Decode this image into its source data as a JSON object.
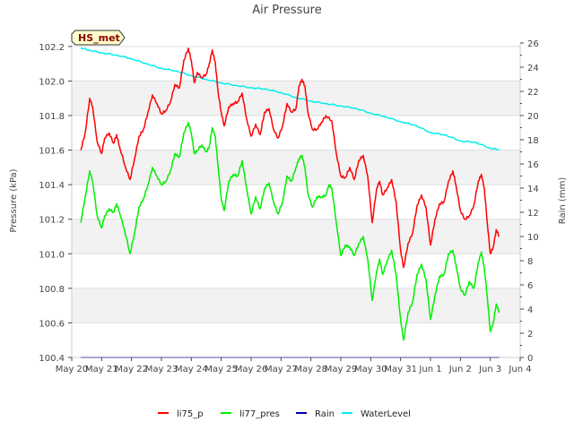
{
  "chart_data": {
    "type": "line",
    "title": "Air Pressure",
    "badge": "HS_met",
    "xlabel": "",
    "ylabel": "Pressure (kPa)",
    "y2label": "Rain (mm)",
    "x_ticks": [
      "May 20",
      "May 21",
      "May 22",
      "May 23",
      "May 24",
      "May 25",
      "May 26",
      "May 27",
      "May 28",
      "May 29",
      "May 30",
      "May 31",
      "Jun 1",
      "Jun 2",
      "Jun 3",
      "Jun 4"
    ],
    "xlim": [
      0,
      15
    ],
    "ylim": [
      100.4,
      102.22
    ],
    "y_ticks": [
      "100.4",
      "100.6",
      "100.8",
      "101.0",
      "101.2",
      "101.4",
      "101.6",
      "101.8",
      "102.0",
      "102.2"
    ],
    "y2lim": [
      0,
      26
    ],
    "y2_ticks": [
      "0",
      "2",
      "4",
      "6",
      "8",
      "10",
      "12",
      "14",
      "16",
      "18",
      "20",
      "22",
      "24",
      "26"
    ],
    "grid": true,
    "legend_position": "bottom-center",
    "series": [
      {
        "name": "li75_p",
        "color": "#ff0000",
        "axis": "left",
        "points": [
          [
            0.3,
            101.6
          ],
          [
            0.45,
            101.7
          ],
          [
            0.6,
            101.9
          ],
          [
            0.7,
            101.85
          ],
          [
            0.85,
            101.65
          ],
          [
            1.0,
            101.58
          ],
          [
            1.1,
            101.67
          ],
          [
            1.25,
            101.7
          ],
          [
            1.4,
            101.64
          ],
          [
            1.5,
            101.69
          ],
          [
            1.6,
            101.62
          ],
          [
            1.8,
            101.5
          ],
          [
            1.95,
            101.43
          ],
          [
            2.1,
            101.55
          ],
          [
            2.25,
            101.68
          ],
          [
            2.4,
            101.72
          ],
          [
            2.55,
            101.82
          ],
          [
            2.7,
            101.92
          ],
          [
            2.85,
            101.87
          ],
          [
            3.0,
            101.81
          ],
          [
            3.15,
            101.83
          ],
          [
            3.3,
            101.88
          ],
          [
            3.45,
            101.98
          ],
          [
            3.6,
            101.96
          ],
          [
            3.75,
            102.12
          ],
          [
            3.9,
            102.19
          ],
          [
            4.0,
            102.12
          ],
          [
            4.1,
            101.99
          ],
          [
            4.2,
            102.05
          ],
          [
            4.35,
            102.02
          ],
          [
            4.5,
            102.04
          ],
          [
            4.6,
            102.1
          ],
          [
            4.7,
            102.18
          ],
          [
            4.8,
            102.11
          ],
          [
            4.9,
            101.93
          ],
          [
            5.0,
            101.82
          ],
          [
            5.1,
            101.74
          ],
          [
            5.25,
            101.85
          ],
          [
            5.4,
            101.87
          ],
          [
            5.55,
            101.88
          ],
          [
            5.7,
            101.93
          ],
          [
            5.85,
            101.78
          ],
          [
            6.0,
            101.68
          ],
          [
            6.15,
            101.75
          ],
          [
            6.3,
            101.69
          ],
          [
            6.45,
            101.82
          ],
          [
            6.6,
            101.84
          ],
          [
            6.75,
            101.72
          ],
          [
            6.9,
            101.67
          ],
          [
            7.05,
            101.74
          ],
          [
            7.2,
            101.87
          ],
          [
            7.35,
            101.82
          ],
          [
            7.5,
            101.84
          ],
          [
            7.6,
            101.97
          ],
          [
            7.7,
            102.01
          ],
          [
            7.8,
            101.97
          ],
          [
            7.9,
            101.82
          ],
          [
            8.05,
            101.72
          ],
          [
            8.2,
            101.72
          ],
          [
            8.35,
            101.76
          ],
          [
            8.5,
            101.8
          ],
          [
            8.7,
            101.77
          ],
          [
            8.85,
            101.58
          ],
          [
            9.0,
            101.45
          ],
          [
            9.15,
            101.44
          ],
          [
            9.3,
            101.5
          ],
          [
            9.45,
            101.43
          ],
          [
            9.6,
            101.54
          ],
          [
            9.75,
            101.57
          ],
          [
            9.9,
            101.45
          ],
          [
            10.05,
            101.18
          ],
          [
            10.2,
            101.38
          ],
          [
            10.3,
            101.42
          ],
          [
            10.4,
            101.34
          ],
          [
            10.55,
            101.38
          ],
          [
            10.7,
            101.43
          ],
          [
            10.85,
            101.3
          ],
          [
            11.0,
            101.02
          ],
          [
            11.1,
            100.92
          ],
          [
            11.25,
            101.06
          ],
          [
            11.4,
            101.12
          ],
          [
            11.55,
            101.28
          ],
          [
            11.7,
            101.34
          ],
          [
            11.85,
            101.27
          ],
          [
            12.0,
            101.05
          ],
          [
            12.15,
            101.2
          ],
          [
            12.3,
            101.29
          ],
          [
            12.45,
            101.3
          ],
          [
            12.6,
            101.42
          ],
          [
            12.75,
            101.48
          ],
          [
            12.85,
            101.4
          ],
          [
            13.0,
            101.25
          ],
          [
            13.15,
            101.2
          ],
          [
            13.3,
            101.22
          ],
          [
            13.45,
            101.28
          ],
          [
            13.6,
            101.42
          ],
          [
            13.7,
            101.46
          ],
          [
            13.8,
            101.38
          ],
          [
            13.9,
            101.18
          ],
          [
            14.0,
            101.0
          ],
          [
            14.1,
            101.04
          ],
          [
            14.2,
            101.14
          ],
          [
            14.3,
            101.1
          ]
        ]
      },
      {
        "name": "li77_pres",
        "color": "#00ee00",
        "axis": "left",
        "points": [
          [
            0.3,
            101.18
          ],
          [
            0.45,
            101.33
          ],
          [
            0.6,
            101.48
          ],
          [
            0.7,
            101.42
          ],
          [
            0.85,
            101.22
          ],
          [
            1.0,
            101.15
          ],
          [
            1.1,
            101.22
          ],
          [
            1.25,
            101.26
          ],
          [
            1.4,
            101.24
          ],
          [
            1.5,
            101.29
          ],
          [
            1.6,
            101.24
          ],
          [
            1.75,
            101.15
          ],
          [
            1.95,
            101.0
          ],
          [
            2.1,
            101.12
          ],
          [
            2.25,
            101.27
          ],
          [
            2.4,
            101.32
          ],
          [
            2.55,
            101.4
          ],
          [
            2.7,
            101.5
          ],
          [
            2.85,
            101.45
          ],
          [
            3.0,
            101.4
          ],
          [
            3.15,
            101.42
          ],
          [
            3.3,
            101.48
          ],
          [
            3.45,
            101.58
          ],
          [
            3.6,
            101.56
          ],
          [
            3.75,
            101.7
          ],
          [
            3.9,
            101.76
          ],
          [
            4.0,
            101.7
          ],
          [
            4.1,
            101.58
          ],
          [
            4.2,
            101.6
          ],
          [
            4.35,
            101.63
          ],
          [
            4.5,
            101.59
          ],
          [
            4.6,
            101.62
          ],
          [
            4.7,
            101.73
          ],
          [
            4.8,
            101.68
          ],
          [
            4.9,
            101.5
          ],
          [
            5.0,
            101.32
          ],
          [
            5.1,
            101.25
          ],
          [
            5.25,
            101.42
          ],
          [
            5.4,
            101.46
          ],
          [
            5.55,
            101.45
          ],
          [
            5.7,
            101.54
          ],
          [
            5.85,
            101.38
          ],
          [
            6.0,
            101.23
          ],
          [
            6.15,
            101.33
          ],
          [
            6.3,
            101.26
          ],
          [
            6.45,
            101.38
          ],
          [
            6.6,
            101.41
          ],
          [
            6.75,
            101.3
          ],
          [
            6.9,
            101.23
          ],
          [
            7.05,
            101.3
          ],
          [
            7.2,
            101.45
          ],
          [
            7.35,
            101.42
          ],
          [
            7.5,
            101.5
          ],
          [
            7.6,
            101.55
          ],
          [
            7.7,
            101.57
          ],
          [
            7.8,
            101.5
          ],
          [
            7.9,
            101.35
          ],
          [
            8.05,
            101.27
          ],
          [
            8.2,
            101.33
          ],
          [
            8.35,
            101.33
          ],
          [
            8.5,
            101.34
          ],
          [
            8.6,
            101.4
          ],
          [
            8.7,
            101.38
          ],
          [
            8.85,
            101.18
          ],
          [
            9.0,
            100.99
          ],
          [
            9.15,
            101.05
          ],
          [
            9.3,
            101.04
          ],
          [
            9.45,
            100.99
          ],
          [
            9.6,
            101.06
          ],
          [
            9.75,
            101.1
          ],
          [
            9.9,
            100.97
          ],
          [
            10.05,
            100.73
          ],
          [
            10.2,
            100.9
          ],
          [
            10.3,
            100.97
          ],
          [
            10.4,
            100.88
          ],
          [
            10.55,
            100.96
          ],
          [
            10.7,
            101.02
          ],
          [
            10.85,
            100.88
          ],
          [
            11.0,
            100.62
          ],
          [
            11.1,
            100.5
          ],
          [
            11.25,
            100.66
          ],
          [
            11.4,
            100.72
          ],
          [
            11.55,
            100.88
          ],
          [
            11.7,
            100.94
          ],
          [
            11.85,
            100.85
          ],
          [
            12.0,
            100.62
          ],
          [
            12.15,
            100.76
          ],
          [
            12.3,
            100.87
          ],
          [
            12.45,
            100.88
          ],
          [
            12.6,
            101.0
          ],
          [
            12.75,
            101.02
          ],
          [
            12.85,
            100.94
          ],
          [
            13.0,
            100.8
          ],
          [
            13.15,
            100.76
          ],
          [
            13.3,
            100.84
          ],
          [
            13.45,
            100.8
          ],
          [
            13.6,
            100.95
          ],
          [
            13.7,
            101.01
          ],
          [
            13.8,
            100.92
          ],
          [
            13.9,
            100.75
          ],
          [
            14.0,
            100.55
          ],
          [
            14.1,
            100.6
          ],
          [
            14.2,
            100.71
          ],
          [
            14.3,
            100.66
          ]
        ]
      },
      {
        "name": "Rain",
        "color": "#0000aa",
        "axis": "right",
        "points": [
          [
            0.3,
            0
          ],
          [
            14.3,
            0
          ]
        ]
      },
      {
        "name": "WaterLevel",
        "color": "#00eeee",
        "axis": "right",
        "points": [
          [
            0.3,
            25.6
          ],
          [
            0.6,
            25.4
          ],
          [
            1.0,
            25.2
          ],
          [
            1.5,
            25.0
          ],
          [
            2.0,
            24.7
          ],
          [
            2.5,
            24.3
          ],
          [
            3.0,
            23.9
          ],
          [
            3.5,
            23.7
          ],
          [
            4.0,
            23.3
          ],
          [
            4.5,
            23.0
          ],
          [
            5.0,
            22.7
          ],
          [
            5.5,
            22.5
          ],
          [
            6.0,
            22.3
          ],
          [
            6.5,
            22.2
          ],
          [
            7.0,
            21.9
          ],
          [
            7.5,
            21.5
          ],
          [
            8.0,
            21.2
          ],
          [
            8.5,
            21.0
          ],
          [
            9.0,
            20.8
          ],
          [
            9.5,
            20.6
          ],
          [
            10.0,
            20.2
          ],
          [
            10.5,
            19.9
          ],
          [
            11.0,
            19.5
          ],
          [
            11.5,
            19.2
          ],
          [
            12.0,
            18.6
          ],
          [
            12.5,
            18.4
          ],
          [
            13.0,
            17.9
          ],
          [
            13.5,
            17.8
          ],
          [
            14.0,
            17.3
          ],
          [
            14.3,
            17.2
          ]
        ]
      }
    ]
  }
}
